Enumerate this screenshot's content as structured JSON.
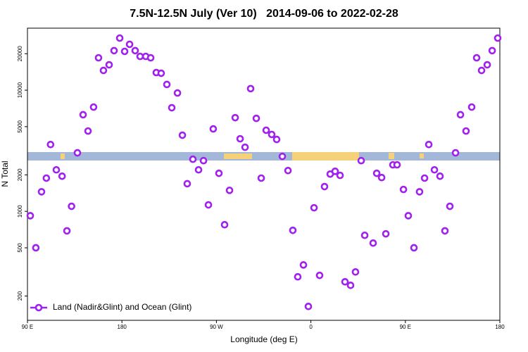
{
  "chart_data": {
    "type": "scatter",
    "title": "7.5N-12.5N July (Ver 10)   2014-09-06 to 2022-02-28",
    "xlabel": "Longitude (deg E)",
    "ylabel": "N Total",
    "log_y": true,
    "legend": "lower left",
    "xlim": [
      90,
      540
    ],
    "ylim": [
      126,
      32500
    ],
    "xticks": [
      {
        "value": 90,
        "label": "90 E"
      },
      {
        "value": 180,
        "label": "180"
      },
      {
        "value": 270,
        "label": "90 W"
      },
      {
        "value": 360,
        "label": "0"
      },
      {
        "value": 450,
        "label": "90 E"
      },
      {
        "value": 540,
        "label": "180"
      }
    ],
    "yticks": [
      200,
      500,
      1000,
      2000,
      5000,
      10000,
      20000
    ],
    "x": [
      92.7,
      98,
      103.4,
      108,
      112,
      117.5,
      123,
      127.6,
      132,
      137.6,
      143,
      147.7,
      153,
      157.7,
      162.4,
      167.8,
      172.5,
      177.9,
      182.6,
      187.3,
      192.6,
      197.3,
      202.7,
      207.4,
      212.7,
      217.4,
      222.8,
      232.9,
      227.5,
      237.6,
      242.2,
      247.6,
      253,
      257.7,
      262.4,
      267,
      272.4,
      277.8,
      282.5,
      287.9,
      292.6,
      297.3,
      302.6,
      308,
      312.7,
      317.4,
      322.7,
      327.4,
      332.8,
      338.2,
      342.8,
      347.5,
      352.9,
      357.6,
      363,
      368.3,
      373,
      378.4,
      383.1,
      387.8,
      392.5,
      397.8,
      402.5,
      407.9,
      411.3,
      419.3,
      422.7,
      427.4,
      431.4,
      438.1,
      442.1,
      448.2,
      452.8,
      458.2,
      463.5,
      468.3,
      472.3,
      477.7,
      483,
      487.7,
      492.4,
      497.8,
      502.5,
      507.8,
      513.2,
      517.9,
      522.6,
      528,
      532.7,
      538
    ],
    "series": [
      {
        "name": "Land (Nadir&Glint) and Ocean (Glint)",
        "color": "#a020f0",
        "values": [
          920,
          500,
          1450,
          1880,
          3560,
          2200,
          1950,
          690,
          1100,
          3040,
          6270,
          4600,
          7250,
          18500,
          14550,
          16200,
          21200,
          26900,
          20900,
          23900,
          21200,
          19000,
          19000,
          18500,
          13970,
          13800,
          11150,
          9480,
          7160,
          4250,
          1690,
          2690,
          2200,
          2620,
          1130,
          4790,
          2060,
          775,
          1490,
          5930,
          3970,
          3380,
          10300,
          5850,
          1880,
          4670,
          4310,
          3920,
          2840,
          2170,
          697,
          288,
          361,
          164,
          1070,
          296,
          1600,
          2030,
          2140,
          1980,
          262,
          245,
          316,
          2620,
          634,
          547,
          2060,
          1900,
          652,
          2420,
          2420,
          1515,
          920,
          500,
          1450,
          1880,
          3560,
          2200,
          1950,
          690,
          1100,
          3040,
          6270,
          4600,
          7250,
          18500,
          14550,
          16200,
          21200,
          26900
        ]
      }
    ]
  }
}
